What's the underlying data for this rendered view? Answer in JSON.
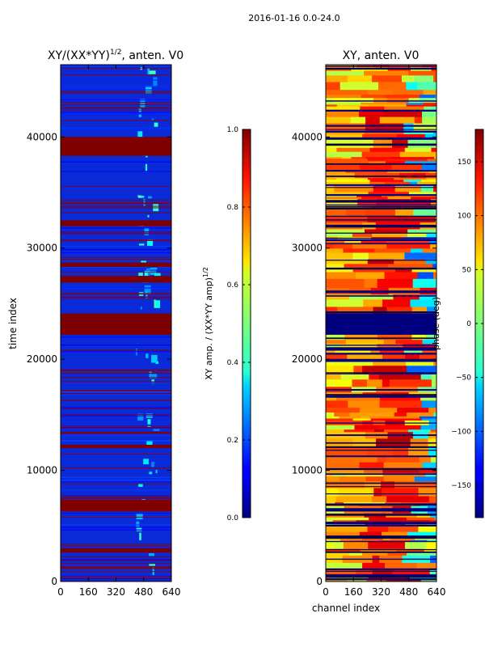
{
  "suptitle": "2016-01-16 0.0-24.0",
  "chart_data": [
    {
      "type": "heatmap",
      "title_main": "XY/(XX*YY)",
      "title_exp": "1/2",
      "title_rest": ", anten. V0",
      "xlabel": "",
      "ylabel": "time index",
      "x_ticks": [
        "0",
        "160",
        "320",
        "480",
        "640"
      ],
      "y_ticks": [
        "0",
        "10000",
        "20000",
        "30000",
        "40000"
      ],
      "xlim": [
        0,
        640
      ],
      "ylim": [
        0,
        46500
      ],
      "colorbar": {
        "label_main": "XY amp. / (XX*YY amp)",
        "label_exp": "1/2",
        "ticks": [
          "0.0",
          "0.2",
          "0.4",
          "0.6",
          "0.8",
          "1.0"
        ],
        "range": [
          0.0,
          1.0
        ],
        "colormap": "jet"
      },
      "saturated_bands": [
        [
          6300,
          7300
        ],
        [
          12000,
          12300
        ],
        [
          22200,
          24100
        ],
        [
          26900,
          27500
        ],
        [
          28300,
          28700
        ],
        [
          32000,
          32500
        ],
        [
          38300,
          39600
        ],
        [
          39500,
          40000
        ],
        [
          2600,
          3000
        ]
      ]
    },
    {
      "type": "heatmap",
      "title": "XY, anten. V0",
      "xlabel": "channel index",
      "ylabel": "",
      "x_ticks": [
        "0",
        "160",
        "320",
        "480",
        "640"
      ],
      "y_ticks": [
        "0",
        "10000",
        "20000",
        "30000",
        "40000"
      ],
      "xlim": [
        0,
        640
      ],
      "ylim": [
        0,
        46500
      ],
      "colorbar": {
        "label": "phase (deg)",
        "ticks": [
          "−150",
          "−100",
          "−50",
          "0",
          "50",
          "100",
          "150"
        ],
        "range": [
          -180,
          180
        ],
        "colormap": "jet"
      },
      "blank_bands": [
        [
          22200,
          24100
        ],
        [
          6300,
          6600
        ]
      ]
    }
  ]
}
